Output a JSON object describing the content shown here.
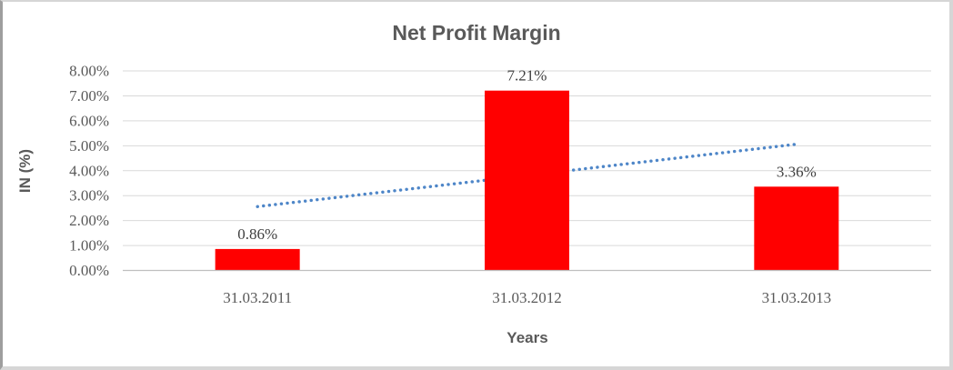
{
  "chart_data": {
    "type": "bar",
    "title": "Net Profit Margin",
    "xlabel": "Years",
    "ylabel": "IN (%)",
    "categories": [
      "31.03.2011",
      "31.03.2012",
      "31.03.2013"
    ],
    "values": [
      0.86,
      7.21,
      3.36
    ],
    "data_labels": [
      "0.86%",
      "7.21%",
      "3.36%"
    ],
    "yticks": [
      {
        "value": 0,
        "label": "0.00%"
      },
      {
        "value": 1,
        "label": "1.00%"
      },
      {
        "value": 2,
        "label": "2.00%"
      },
      {
        "value": 3,
        "label": "3.00%"
      },
      {
        "value": 4,
        "label": "4.00%"
      },
      {
        "value": 5,
        "label": "5.00%"
      },
      {
        "value": 6,
        "label": "6.00%"
      },
      {
        "value": 7,
        "label": "7.00%"
      },
      {
        "value": 8,
        "label": "8.00%"
      }
    ],
    "ylim": [
      0,
      8
    ],
    "grid": true,
    "legend": "none",
    "trendline": {
      "type": "linear",
      "dash": "dotted",
      "start_value": 2.56,
      "end_value": 5.06
    },
    "colors": {
      "bar": "#FF0000",
      "trendline": "#4E86C8",
      "gridline": "#D9D9D9",
      "axis_line": "#BFBFBF",
      "title_text": "#595959",
      "axis_title_text": "#595959",
      "tick_text": "#595959",
      "data_label_text": "#3F3F3F"
    }
  }
}
